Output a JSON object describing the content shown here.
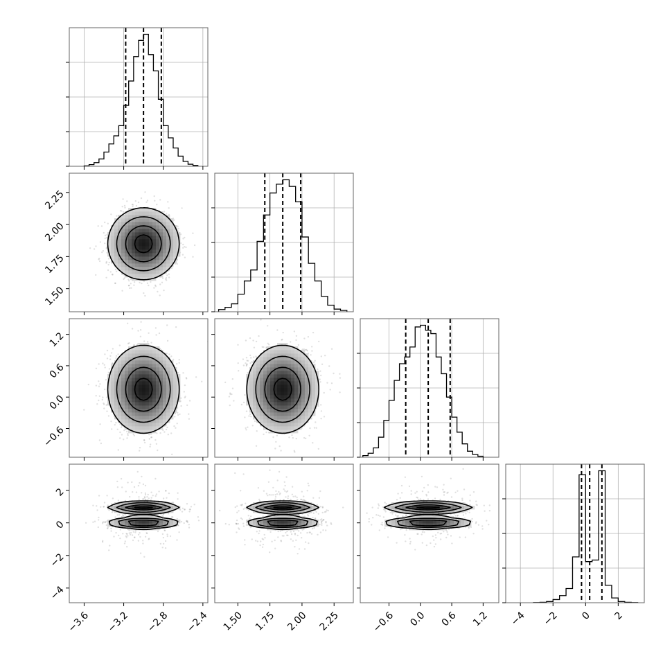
{
  "chart_data": {
    "type": "corner",
    "grid": true,
    "parameters": [
      {
        "range": [
          -3.75,
          -2.35
        ],
        "ticks": [
          -3.6,
          -3.2,
          -2.8,
          -2.4
        ],
        "tick_labels": [
          "−3.6",
          "−3.2",
          "−2.8",
          "−2.4"
        ],
        "quantiles": [
          -3.18,
          -3.0,
          -2.82
        ],
        "mean": -3.0,
        "sd": 0.18
      },
      {
        "range": [
          1.32,
          2.4
        ],
        "ticks": [
          1.5,
          1.75,
          2.0,
          2.25
        ],
        "tick_labels": [
          "1.50",
          "1.75",
          "2.00",
          "2.25"
        ],
        "quantiles": [
          1.71,
          1.85,
          1.99
        ],
        "mean": 1.85,
        "sd": 0.14
      },
      {
        "range": [
          -1.15,
          1.5
        ],
        "ticks": [
          -0.6,
          0.0,
          0.6,
          1.2
        ],
        "tick_labels": [
          "−0.6",
          "0.0",
          "0.6",
          "1.2"
        ],
        "quantiles": [
          -0.28,
          0.15,
          0.57
        ],
        "mean": 0.15,
        "sd": 0.42
      },
      {
        "range": [
          -4.9,
          3.6
        ],
        "ticks": [
          -4,
          -2,
          0,
          2
        ],
        "tick_labels": [
          "−4",
          "−2",
          "0",
          "2"
        ],
        "quantiles": [
          -0.25,
          0.25,
          1.0
        ],
        "bimodal_peaks": [
          0.0,
          0.95
        ]
      }
    ],
    "histograms": [
      {
        "param": 0,
        "bins": [
          [
            -3.6,
            -3.55,
            1
          ],
          [
            -3.55,
            -3.5,
            4
          ],
          [
            -3.5,
            -3.45,
            9
          ],
          [
            -3.45,
            -3.4,
            18
          ],
          [
            -3.4,
            -3.35,
            35
          ],
          [
            -3.35,
            -3.3,
            55
          ],
          [
            -3.3,
            -3.25,
            75
          ],
          [
            -3.25,
            -3.2,
            100
          ],
          [
            -3.2,
            -3.15,
            150
          ],
          [
            -3.15,
            -3.1,
            210
          ],
          [
            -3.1,
            -3.05,
            270
          ],
          [
            -3.05,
            -3.0,
            310
          ],
          [
            -3.0,
            -2.95,
            325
          ],
          [
            -2.95,
            -2.9,
            275
          ],
          [
            -2.9,
            -2.85,
            235
          ],
          [
            -2.85,
            -2.8,
            165
          ],
          [
            -2.8,
            -2.75,
            100
          ],
          [
            -2.75,
            -2.7,
            70
          ],
          [
            -2.7,
            -2.65,
            45
          ],
          [
            -2.65,
            -2.6,
            25
          ],
          [
            -2.6,
            -2.55,
            12
          ],
          [
            -2.55,
            -2.5,
            5
          ],
          [
            -2.5,
            -2.45,
            2
          ]
        ]
      },
      {
        "param": 1,
        "bins": [
          [
            1.35,
            1.4,
            5
          ],
          [
            1.4,
            1.45,
            10
          ],
          [
            1.45,
            1.5,
            18
          ],
          [
            1.5,
            1.55,
            40
          ],
          [
            1.55,
            1.6,
            70
          ],
          [
            1.6,
            1.65,
            95
          ],
          [
            1.65,
            1.7,
            160
          ],
          [
            1.7,
            1.75,
            220
          ],
          [
            1.75,
            1.8,
            270
          ],
          [
            1.8,
            1.85,
            290
          ],
          [
            1.85,
            1.9,
            300
          ],
          [
            1.9,
            1.95,
            285
          ],
          [
            1.95,
            2.0,
            250
          ],
          [
            2.0,
            2.05,
            170
          ],
          [
            2.05,
            2.1,
            110
          ],
          [
            2.1,
            2.15,
            70
          ],
          [
            2.15,
            2.2,
            35
          ],
          [
            2.2,
            2.25,
            15
          ],
          [
            2.25,
            2.3,
            6
          ],
          [
            2.3,
            2.35,
            3
          ]
        ]
      },
      {
        "param": 2,
        "bins": [
          [
            -1.1,
            -1.0,
            5
          ],
          [
            -1.0,
            -0.9,
            12
          ],
          [
            -0.9,
            -0.8,
            28
          ],
          [
            -0.8,
            -0.7,
            60
          ],
          [
            -0.7,
            -0.6,
            110
          ],
          [
            -0.6,
            -0.5,
            170
          ],
          [
            -0.5,
            -0.4,
            230
          ],
          [
            -0.4,
            -0.3,
            280
          ],
          [
            -0.3,
            -0.2,
            300
          ],
          [
            -0.2,
            -0.1,
            330
          ],
          [
            -0.1,
            0.0,
            390
          ],
          [
            0.0,
            0.1,
            395
          ],
          [
            0.1,
            0.2,
            380
          ],
          [
            0.2,
            0.3,
            370
          ],
          [
            0.3,
            0.4,
            300
          ],
          [
            0.4,
            0.5,
            250
          ],
          [
            0.5,
            0.6,
            180
          ],
          [
            0.6,
            0.7,
            120
          ],
          [
            0.7,
            0.8,
            75
          ],
          [
            0.8,
            0.9,
            40
          ],
          [
            0.9,
            1.0,
            18
          ],
          [
            1.0,
            1.1,
            8
          ],
          [
            1.1,
            1.2,
            3
          ]
        ]
      },
      {
        "param": 3,
        "bins": [
          [
            -3.2,
            -2.8,
            2
          ],
          [
            -2.8,
            -2.4,
            5
          ],
          [
            -2.4,
            -2.0,
            15
          ],
          [
            -2.0,
            -1.6,
            40
          ],
          [
            -1.6,
            -1.2,
            90
          ],
          [
            -1.2,
            -0.8,
            180
          ],
          [
            -0.8,
            -0.4,
            580
          ],
          [
            -0.4,
            0.0,
            1620
          ],
          [
            0.0,
            0.4,
            520
          ],
          [
            0.4,
            0.8,
            540
          ],
          [
            0.8,
            1.2,
            1670
          ],
          [
            1.2,
            1.6,
            220
          ],
          [
            1.6,
            2.0,
            60
          ],
          [
            2.0,
            2.4,
            15
          ],
          [
            2.4,
            2.8,
            5
          ],
          [
            2.8,
            3.2,
            2
          ]
        ]
      }
    ],
    "contour_levels_sigma": [
      0.5,
      1.0,
      1.5,
      2.0
    ]
  }
}
